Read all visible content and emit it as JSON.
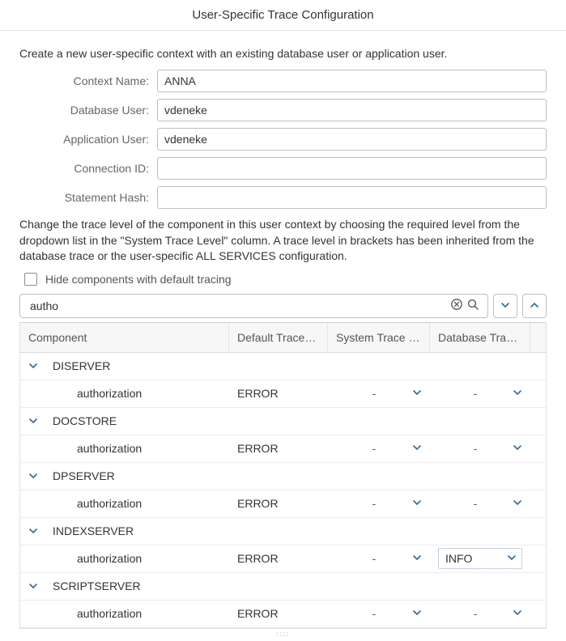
{
  "title": "User-Specific Trace Configuration",
  "intro": "Create a new user-specific context with an existing database user or application user.",
  "form": {
    "labels": {
      "context_name": "Context Name:",
      "database_user": "Database User:",
      "application_user": "Application User:",
      "connection_id": "Connection ID:",
      "statement_hash": "Statement Hash:"
    },
    "values": {
      "context_name": "ANNA",
      "database_user": "vdeneke",
      "application_user": "vdeneke",
      "connection_id": "",
      "statement_hash": ""
    }
  },
  "para2": "Change the trace level of the component in this user context by choosing the required level from the dropdown list in the \"System Trace Level\" column. A trace level in brackets has been inherited from the database trace or the user-specific ALL SERVICES configuration.",
  "hide_checkbox_label": "Hide components with default tracing",
  "hide_checkbox_checked": false,
  "search_value": "autho",
  "table": {
    "columns": {
      "component": "Component",
      "default": "Default Trace L…",
      "system": "System Trace L…",
      "database": "Database Trac…"
    },
    "groups": [
      {
        "name": "DISERVER",
        "children": [
          {
            "name": "authorization",
            "default": "ERROR",
            "system": "-",
            "database": "-",
            "db_boxed": false
          }
        ]
      },
      {
        "name": "DOCSTORE",
        "children": [
          {
            "name": "authorization",
            "default": "ERROR",
            "system": "-",
            "database": "-",
            "db_boxed": false
          }
        ]
      },
      {
        "name": "DPSERVER",
        "children": [
          {
            "name": "authorization",
            "default": "ERROR",
            "system": "-",
            "database": "-",
            "db_boxed": false
          }
        ]
      },
      {
        "name": "INDEXSERVER",
        "children": [
          {
            "name": "authorization",
            "default": "ERROR",
            "system": "-",
            "database": "INFO",
            "db_boxed": true
          }
        ]
      },
      {
        "name": "SCRIPTSERVER",
        "children": [
          {
            "name": "authorization",
            "default": "ERROR",
            "system": "-",
            "database": "-",
            "db_boxed": false
          }
        ]
      }
    ]
  },
  "drag_handle": "::::"
}
